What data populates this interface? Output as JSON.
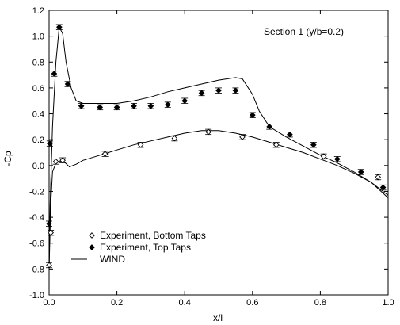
{
  "chart_data": {
    "type": "scatter",
    "title": "",
    "annotation": "Section 1 (y/b=0.2)",
    "xlabel": "x/l",
    "ylabel": "-Cp",
    "xlim": [
      0,
      1
    ],
    "ylim": [
      -1,
      1.2
    ],
    "xticks": [
      0,
      0.2,
      0.4,
      0.6,
      0.8,
      1
    ],
    "xtick_labels": [
      "0.0",
      "0.2",
      "0.4",
      "0.6",
      "0.8",
      "1.0"
    ],
    "yticks": [
      -1,
      -0.8,
      -0.6,
      -0.4,
      -0.2,
      0,
      0.2,
      0.4,
      0.6,
      0.8,
      1,
      1.2
    ],
    "ytick_labels": [
      "-1.0",
      "-0.8",
      "-0.6",
      "-0.4",
      "-0.2",
      "0.0",
      "0.2",
      "0.4",
      "0.6",
      "0.8",
      "1.0",
      "1.2"
    ],
    "grid": false,
    "legend_position": "bottom-left",
    "series": [
      {
        "name": "Experiment, Bottom Taps",
        "kind": "markers",
        "marker": "open-diamond",
        "error": 0.02,
        "points": [
          [
            0.0,
            -0.77
          ],
          [
            0.005,
            -0.52
          ],
          [
            0.02,
            0.03
          ],
          [
            0.04,
            0.04
          ],
          [
            0.165,
            0.09
          ],
          [
            0.27,
            0.16
          ],
          [
            0.37,
            0.21
          ],
          [
            0.47,
            0.26
          ],
          [
            0.57,
            0.22
          ],
          [
            0.67,
            0.16
          ],
          [
            0.81,
            0.07
          ],
          [
            0.97,
            -0.09
          ]
        ]
      },
      {
        "name": "Experiment, Top Taps",
        "kind": "markers",
        "marker": "filled-diamond",
        "error": 0.02,
        "points": [
          [
            0.0,
            -0.45
          ],
          [
            0.002,
            0.17
          ],
          [
            0.015,
            0.71
          ],
          [
            0.03,
            1.07
          ],
          [
            0.055,
            0.63
          ],
          [
            0.095,
            0.46
          ],
          [
            0.15,
            0.45
          ],
          [
            0.2,
            0.45
          ],
          [
            0.25,
            0.46
          ],
          [
            0.3,
            0.46
          ],
          [
            0.35,
            0.47
          ],
          [
            0.4,
            0.5
          ],
          [
            0.45,
            0.56
          ],
          [
            0.5,
            0.58
          ],
          [
            0.55,
            0.58
          ],
          [
            0.6,
            0.39
          ],
          [
            0.65,
            0.3
          ],
          [
            0.71,
            0.24
          ],
          [
            0.78,
            0.16
          ],
          [
            0.85,
            0.05
          ],
          [
            0.92,
            -0.05
          ],
          [
            0.985,
            -0.17
          ]
        ]
      },
      {
        "name": "WIND",
        "kind": "line",
        "points": [
          [
            0.0,
            -0.82
          ],
          [
            0.003,
            -0.3
          ],
          [
            0.01,
            0.3
          ],
          [
            0.02,
            0.8
          ],
          [
            0.03,
            1.07
          ],
          [
            0.04,
            1.02
          ],
          [
            0.05,
            0.8
          ],
          [
            0.065,
            0.6
          ],
          [
            0.08,
            0.5
          ],
          [
            0.1,
            0.48
          ],
          [
            0.15,
            0.48
          ],
          [
            0.2,
            0.48
          ],
          [
            0.25,
            0.5
          ],
          [
            0.3,
            0.53
          ],
          [
            0.35,
            0.57
          ],
          [
            0.4,
            0.6
          ],
          [
            0.45,
            0.63
          ],
          [
            0.5,
            0.66
          ],
          [
            0.55,
            0.68
          ],
          [
            0.57,
            0.67
          ],
          [
            0.6,
            0.55
          ],
          [
            0.62,
            0.42
          ],
          [
            0.65,
            0.3
          ],
          [
            0.7,
            0.22
          ],
          [
            0.75,
            0.15
          ],
          [
            0.8,
            0.08
          ],
          [
            0.85,
            0.02
          ],
          [
            0.9,
            -0.05
          ],
          [
            0.95,
            -0.13
          ],
          [
            1.0,
            -0.23
          ]
        ]
      },
      {
        "name": "WIND",
        "kind": "line",
        "in_legend": false,
        "points": [
          [
            0.0,
            -0.8
          ],
          [
            0.005,
            -0.3
          ],
          [
            0.01,
            -0.05
          ],
          [
            0.02,
            0.02
          ],
          [
            0.04,
            0.04
          ],
          [
            0.06,
            -0.01
          ],
          [
            0.08,
            0.01
          ],
          [
            0.1,
            0.04
          ],
          [
            0.15,
            0.08
          ],
          [
            0.2,
            0.12
          ],
          [
            0.25,
            0.16
          ],
          [
            0.3,
            0.19
          ],
          [
            0.35,
            0.22
          ],
          [
            0.4,
            0.25
          ],
          [
            0.45,
            0.27
          ],
          [
            0.5,
            0.27
          ],
          [
            0.55,
            0.25
          ],
          [
            0.6,
            0.22
          ],
          [
            0.65,
            0.18
          ],
          [
            0.7,
            0.14
          ],
          [
            0.75,
            0.1
          ],
          [
            0.8,
            0.05
          ],
          [
            0.85,
            0.0
          ],
          [
            0.9,
            -0.06
          ],
          [
            0.95,
            -0.13
          ],
          [
            1.0,
            -0.25
          ]
        ]
      }
    ]
  }
}
